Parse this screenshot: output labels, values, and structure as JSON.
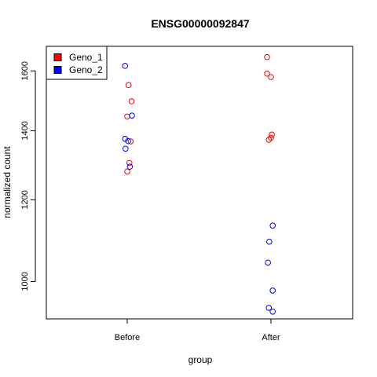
{
  "chart_data": {
    "type": "scatter",
    "title": "ENSG00000092847",
    "xlabel": "group",
    "ylabel": "normalized count",
    "categories": [
      "Before",
      "After"
    ],
    "y_scale": "log",
    "ylim": [
      920,
      1690
    ],
    "yticks": [
      1000,
      1200,
      1400,
      1600
    ],
    "grid": false,
    "legend_position": "top-left",
    "series": [
      {
        "name": "Geno_1",
        "color": "#ff0000",
        "points": [
          {
            "group": "Before",
            "jitter": 0.03,
            "y": 1550
          },
          {
            "group": "Before",
            "jitter": 0.1,
            "y": 1495
          },
          {
            "group": "Before",
            "jitter": 0.0,
            "y": 1445
          },
          {
            "group": "Before",
            "jitter": 0.08,
            "y": 1367
          },
          {
            "group": "Before",
            "jitter": 0.05,
            "y": 1303
          },
          {
            "group": "Before",
            "jitter": 0.0,
            "y": 1278
          },
          {
            "group": "After",
            "jitter": -0.09,
            "y": 1650
          },
          {
            "group": "After",
            "jitter": -0.09,
            "y": 1590
          },
          {
            "group": "After",
            "jitter": 0.0,
            "y": 1578
          },
          {
            "group": "After",
            "jitter": 0.02,
            "y": 1388
          },
          {
            "group": "After",
            "jitter": 0.0,
            "y": 1378
          },
          {
            "group": "After",
            "jitter": -0.05,
            "y": 1372
          }
        ]
      },
      {
        "name": "Geno_2",
        "color": "#0000ff",
        "points": [
          {
            "group": "Before",
            "jitter": -0.05,
            "y": 1618
          },
          {
            "group": "Before",
            "jitter": 0.11,
            "y": 1448
          },
          {
            "group": "Before",
            "jitter": -0.05,
            "y": 1375
          },
          {
            "group": "Before",
            "jitter": 0.02,
            "y": 1368
          },
          {
            "group": "Before",
            "jitter": -0.04,
            "y": 1345
          },
          {
            "group": "Before",
            "jitter": 0.06,
            "y": 1292
          },
          {
            "group": "After",
            "jitter": 0.04,
            "y": 1133
          },
          {
            "group": "After",
            "jitter": -0.04,
            "y": 1093
          },
          {
            "group": "After",
            "jitter": -0.07,
            "y": 1043
          },
          {
            "group": "After",
            "jitter": 0.04,
            "y": 980
          },
          {
            "group": "After",
            "jitter": -0.05,
            "y": 943
          },
          {
            "group": "After",
            "jitter": 0.04,
            "y": 935
          }
        ]
      }
    ]
  }
}
